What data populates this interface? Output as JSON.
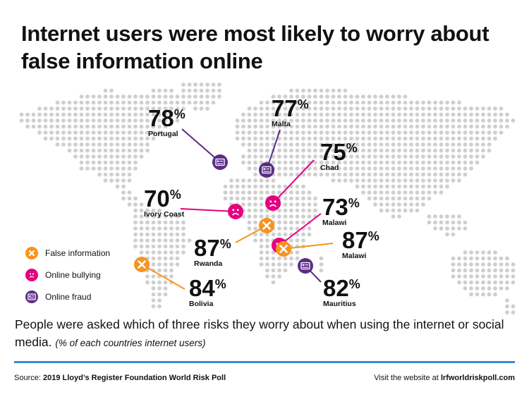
{
  "title": "Internet users were most likely to worry about false information online",
  "colors": {
    "false_information": "#f7941d",
    "online_bullying": "#e5007e",
    "online_fraud": "#5b2c86",
    "map_dots": "#cfcfcf",
    "divider": "#3a8ad6"
  },
  "legend": [
    {
      "label": "False information",
      "icon": "x-icon",
      "color": "#f7941d"
    },
    {
      "label": "Online bullying",
      "icon": "sad-face-icon",
      "color": "#e5007e"
    },
    {
      "label": "Online fraud",
      "icon": "card-icon",
      "color": "#5b2c86"
    }
  ],
  "callouts": [
    {
      "value": "78",
      "sign": "%",
      "country": "Portugal",
      "category": "Online fraud"
    },
    {
      "value": "77",
      "sign": "%",
      "country": "Malta",
      "category": "Online fraud"
    },
    {
      "value": "75",
      "sign": "%",
      "country": "Chad",
      "category": "Online bullying"
    },
    {
      "value": "70",
      "sign": "%",
      "country": "Ivory Coast",
      "category": "Online bullying"
    },
    {
      "value": "73",
      "sign": "%",
      "country": "Malawi",
      "category": "Online bullying"
    },
    {
      "value": "87",
      "sign": "%",
      "country": "Rwanda",
      "category": "False information"
    },
    {
      "value": "87",
      "sign": "%",
      "country": "Malawi",
      "category": "False information"
    },
    {
      "value": "84",
      "sign": "%",
      "country": "Bolivia",
      "category": "False information"
    },
    {
      "value": "82",
      "sign": "%",
      "country": "Mauritius",
      "category": "Online fraud"
    }
  ],
  "description": {
    "main": "People were asked which of three risks they worry about when using the internet or social media.",
    "note": "(% of each countries internet users)"
  },
  "footer": {
    "source_prefix": "Source:",
    "source_name": "2019 Lloyd’s Register Foundation World Risk Poll",
    "website_prefix": "Visit the website at",
    "website_url": "lrfworldriskpoll.com"
  }
}
